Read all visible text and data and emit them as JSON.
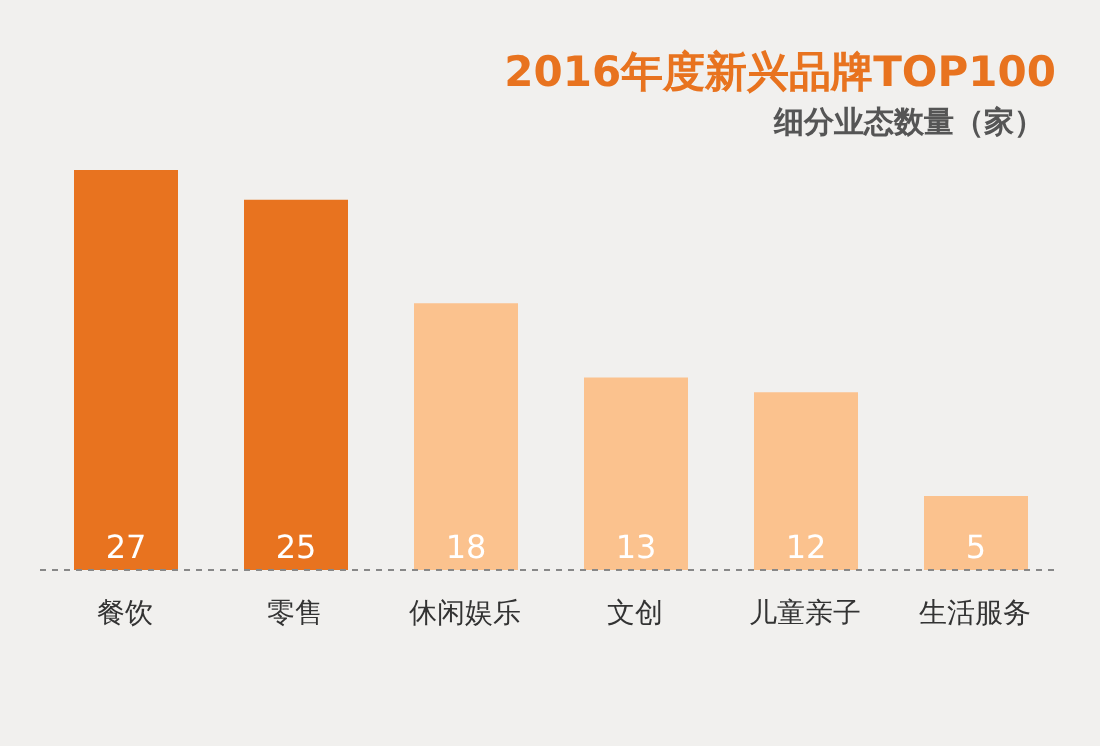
{
  "chart_data": {
    "type": "bar",
    "title": "2016年度新兴品牌TOP100",
    "subtitle": "细分业态数量（家）",
    "categories": [
      "餐饮",
      "零售",
      "休闲娱乐",
      "文创",
      "儿童亲子",
      "生活服务"
    ],
    "values": [
      27,
      25,
      18,
      13,
      12,
      5
    ],
    "colors": [
      "#e8731f",
      "#e8731f",
      "#fbc28e",
      "#fbc28e",
      "#fbc28e",
      "#fbc28e"
    ],
    "data_labels": true,
    "grid": false,
    "legend": false
  }
}
